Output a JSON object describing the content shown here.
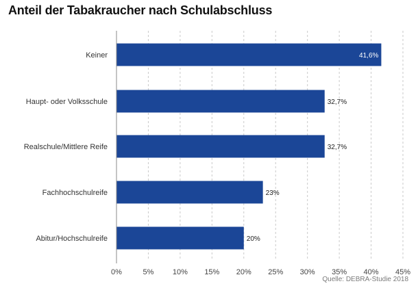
{
  "chart_data": {
    "type": "bar",
    "orientation": "horizontal",
    "title": "Anteil der Tabakraucher nach Schulabschluss",
    "categories": [
      "Keiner",
      "Haupt- oder Volksschule",
      "Realschule/Mittlere Reife",
      "Fachhochschulreife",
      "Abitur/Hochschulreife"
    ],
    "values": [
      41.6,
      32.7,
      32.7,
      23,
      20
    ],
    "value_labels": [
      "41,6%",
      "32,7%",
      "32,7%",
      "23%",
      "20%"
    ],
    "xlim": [
      0,
      45
    ],
    "x_ticks": [
      0,
      5,
      10,
      15,
      20,
      25,
      30,
      35,
      40,
      45
    ],
    "x_tick_labels": [
      "0%",
      "5%",
      "10%",
      "15%",
      "20%",
      "25%",
      "30%",
      "35%",
      "40%",
      "45%"
    ],
    "xlabel": "",
    "ylabel": "",
    "grid": "vertical dashed",
    "legend": "none",
    "bar_color": "#1b4697",
    "source": "Quelle: DEBRA-Studie 2018"
  }
}
